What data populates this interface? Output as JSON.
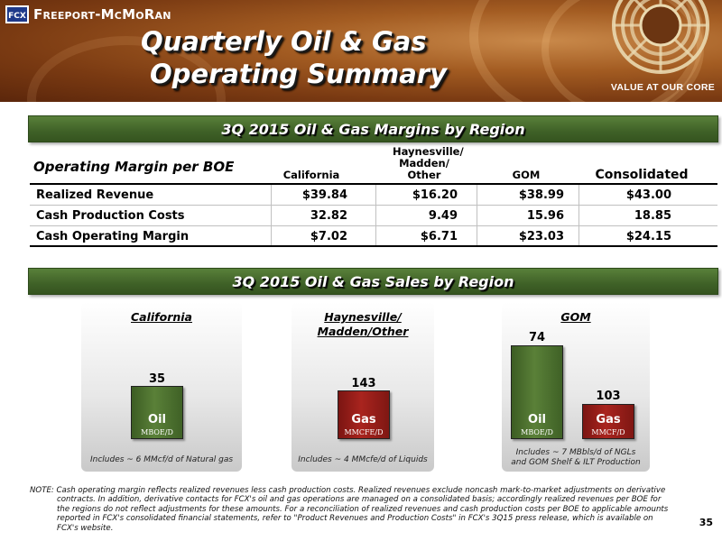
{
  "header": {
    "company": "Freeport-McMoRan",
    "logo_mark": "FCX",
    "title_line1": "Quarterly Oil & Gas",
    "title_line2": "Operating Summary",
    "tagline": "VALUE AT OUR CORE"
  },
  "margins": {
    "banner": "3Q 2015 Oil & Gas Margins by Region",
    "row_header": "Operating Margin per BOE",
    "columns": [
      "California",
      "Haynesville/ Madden/ Other",
      "GOM",
      "Consolidated"
    ],
    "rows": [
      {
        "label": "Realized Revenue",
        "values": [
          "$39.84",
          "$16.20",
          "$38.99",
          "$43.00"
        ]
      },
      {
        "label": "Cash Production Costs",
        "values": [
          "32.82",
          "9.49",
          "15.96",
          "18.85"
        ]
      },
      {
        "label": "Cash Operating Margin",
        "values": [
          "$7.02",
          "$6.71",
          "$23.03",
          "$24.15"
        ]
      }
    ]
  },
  "sales": {
    "banner": "3Q 2015 Oil & Gas Sales by Region",
    "panels": [
      {
        "title": "California",
        "note": "Includes ~ 6 MMcf/d of Natural gas",
        "bars": [
          {
            "value": "35",
            "name": "Oil",
            "unit": "MBOE/D",
            "color": "#4a6e2c"
          }
        ]
      },
      {
        "title": "Haynesville/ Madden/Other",
        "note": "Includes ~ 4 MMcfe/d of Liquids",
        "bars": [
          {
            "value": "143",
            "name": "Gas",
            "unit": "MMCFE/D",
            "color": "#9a1f1a"
          }
        ]
      },
      {
        "title": "GOM",
        "note_line1": "Includes ~ 7 MBbls/d of NGLs",
        "note_line2": "and GOM Shelf & ILT Production",
        "bars": [
          {
            "value": "74",
            "name": "Oil",
            "unit": "MBOE/D",
            "color": "#4a6e2c"
          },
          {
            "value": "103",
            "name": "Gas",
            "unit": "MMCF/D",
            "color": "#9a1f1a"
          }
        ]
      }
    ]
  },
  "footnote": {
    "line1": "NOTE: Cash operating margin reflects realized revenues less cash production costs. Realized revenues exclude noncash mark-to-market adjustments on derivative",
    "line2": "contracts. In addition, derivative contacts for FCX's oil and gas operations are managed on a consolidated basis; accordingly realized revenues per BOE for",
    "line3": "the regions do not reflect adjustments for these amounts. For a reconciliation of realized revenues and cash production costs per BOE to applicable amounts",
    "line4": "reported in FCX's consolidated financial statements, refer to \"Product Revenues and Production Costs\" in FCX's 3Q15 press release, which is available on",
    "line5": "FCX's website."
  },
  "page_number": "35"
}
